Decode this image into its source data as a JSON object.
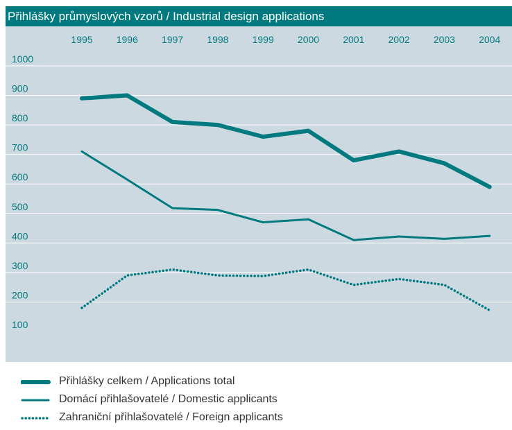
{
  "title": "Přihlášky průmyslových vzorů / Industrial design applications",
  "colors": {
    "accent": "#007a7f",
    "plot_bg": "#cdd9e0",
    "grid": "#ffffff"
  },
  "chart_data": {
    "type": "line",
    "title": "Přihlášky průmyslových vzorů / Industrial design applications",
    "categories": [
      "1995",
      "1996",
      "1997",
      "1998",
      "1999",
      "2000",
      "2001",
      "2002",
      "2003",
      "2004"
    ],
    "y_ticks": [
      "1000",
      "900",
      "800",
      "700",
      "600",
      "500",
      "400",
      "300",
      "200",
      "100"
    ],
    "ylim": [
      100,
      1000
    ],
    "grid": true,
    "series": [
      {
        "name": "Přihlášky celkem / Applications total",
        "style": "thick",
        "values": [
          890,
          900,
          810,
          800,
          760,
          780,
          680,
          710,
          670,
          590
        ]
      },
      {
        "name": "Domácí přihlašovatelé / Domestic applicants",
        "style": "solid",
        "values": [
          710,
          615,
          518,
          512,
          470,
          480,
          410,
          422,
          414,
          424
        ]
      },
      {
        "name": "Zahraniční přihlašovatelé / Foreign applicants",
        "style": "dotted",
        "values": [
          180,
          290,
          310,
          290,
          288,
          310,
          258,
          278,
          258,
          172
        ]
      }
    ]
  }
}
